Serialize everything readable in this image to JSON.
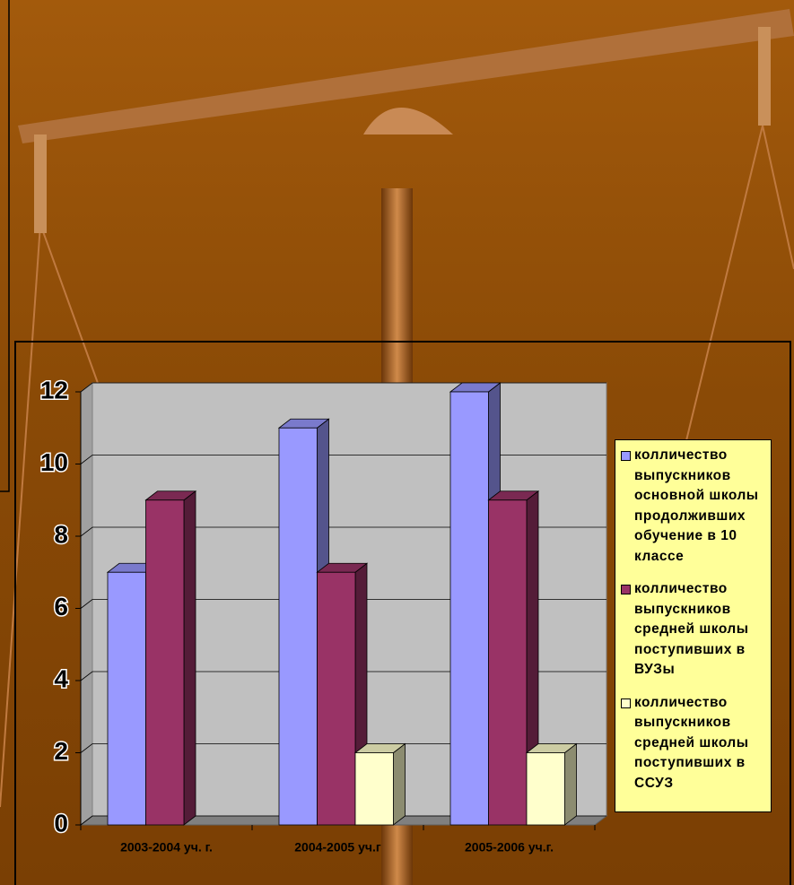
{
  "chart_data": {
    "type": "bar3d",
    "categories": [
      "2003-2004 уч. г.",
      "2004-2005 уч.г",
      "2005-2006 уч.г."
    ],
    "series": [
      {
        "name": "колличество выпускников основной школы продолживших обучение в 10 классе",
        "color": "#9999ff",
        "values": [
          7,
          11,
          12
        ]
      },
      {
        "name": "колличество выпускников средней школы поступивших в ВУЗы",
        "color": "#993366",
        "values": [
          9,
          7,
          9
        ]
      },
      {
        "name": "колличество выпускников средней школы поступивших в ССУЗ",
        "color": "#ffffcc",
        "values": [
          null,
          2,
          2
        ]
      }
    ],
    "ylim": [
      0,
      12
    ],
    "yticks": [
      0,
      2,
      4,
      6,
      8,
      10,
      12
    ],
    "grid": true,
    "legend": "right"
  }
}
